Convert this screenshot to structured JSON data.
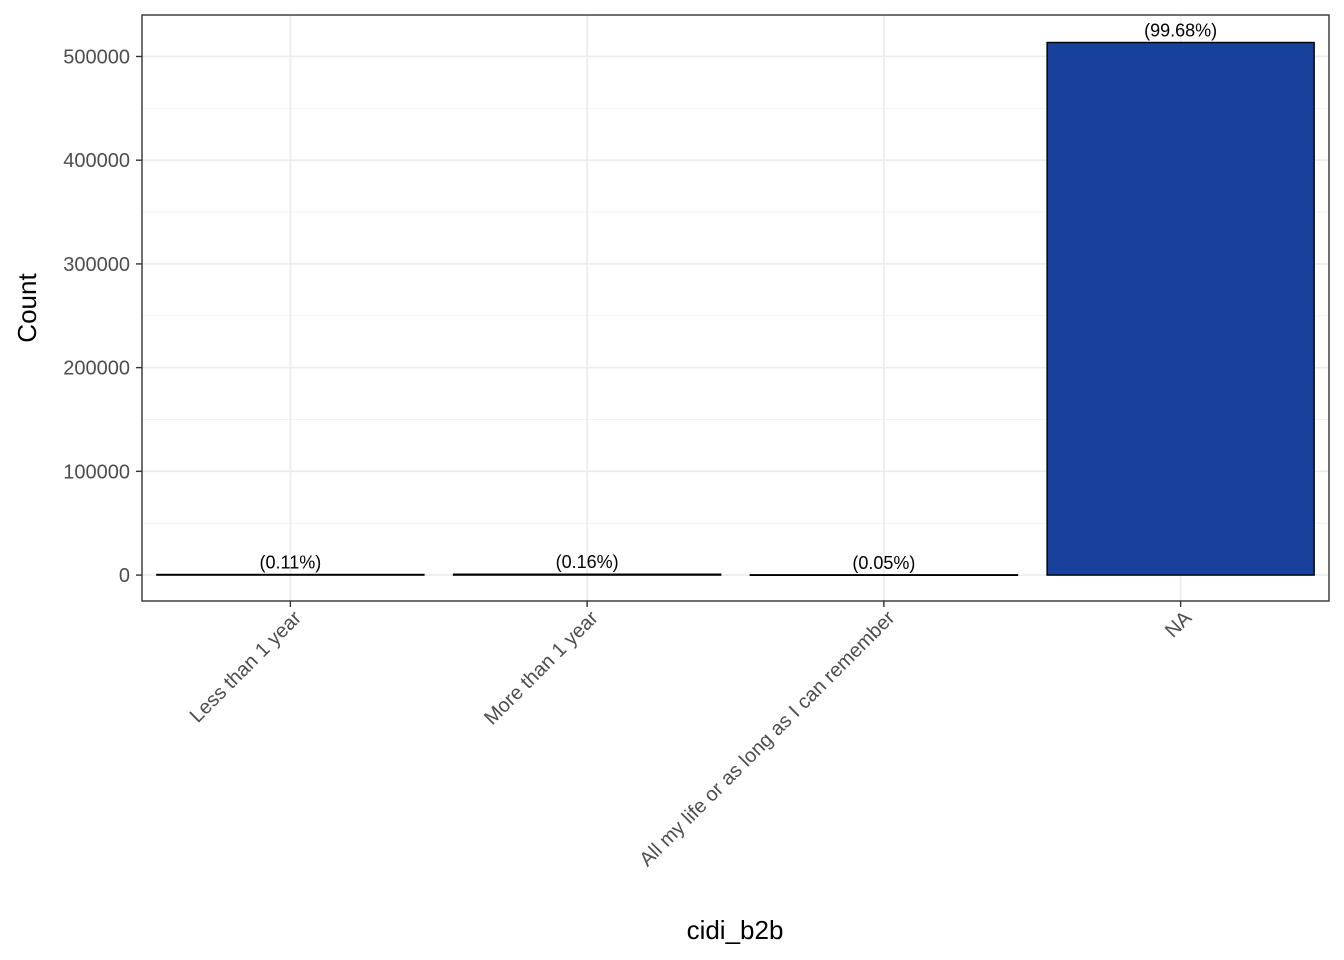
{
  "chart_data": {
    "type": "bar",
    "categories": [
      "Less than 1 year",
      "More than 1 year",
      "All my life or as long as I can remember",
      "NA"
    ],
    "values": [
      565,
      822,
      256,
      513500
    ],
    "labels": [
      "(0.11%)",
      "(0.16%)",
      "(0.05%)",
      "(99.68%)"
    ],
    "xlabel": "cidi_b2b",
    "ylabel": "Count",
    "ylim": [
      -25000,
      540000
    ],
    "yticks": [
      0,
      100000,
      200000,
      300000,
      400000,
      500000
    ],
    "ytick_labels": [
      "0",
      "100000",
      "200000",
      "300000",
      "400000",
      "500000"
    ],
    "grid": true,
    "bar_color": "#17419A",
    "bar_edge_color": "#000000"
  }
}
